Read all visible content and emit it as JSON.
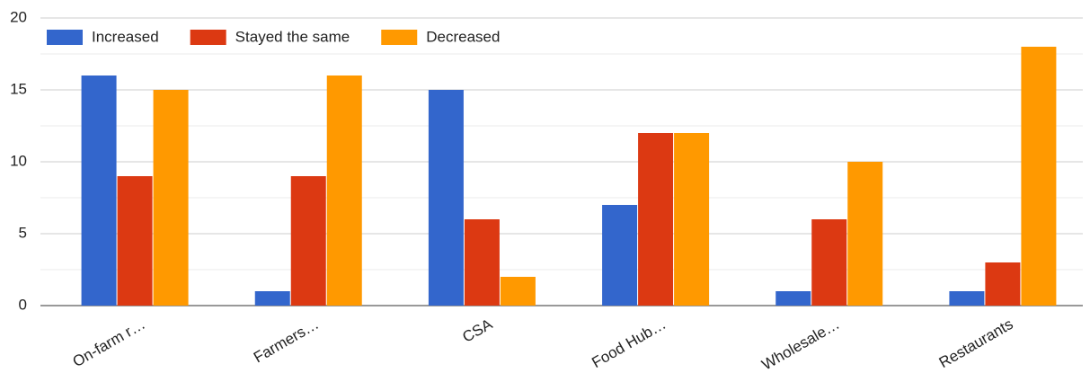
{
  "chart_data": {
    "type": "bar",
    "categories": [
      "On-farm r…",
      "Farmers…",
      "CSA",
      "Food Hub…",
      "Wholesale…",
      "Restaurants"
    ],
    "series": [
      {
        "name": "Increased",
        "color": "#3366cc",
        "values": [
          16,
          1,
          15,
          7,
          1,
          1
        ]
      },
      {
        "name": "Stayed the same",
        "color": "#dc3912",
        "values": [
          9,
          9,
          6,
          12,
          6,
          3
        ]
      },
      {
        "name": "Decreased",
        "color": "#ff9900",
        "values": [
          15,
          16,
          2,
          12,
          10,
          18
        ]
      }
    ],
    "ylim": [
      0,
      20
    ],
    "yticks": [
      0,
      5,
      10,
      15,
      20
    ],
    "minor_yticks": [
      2.5,
      7.5,
      12.5,
      17.5
    ],
    "grid": true,
    "legend": "top-left"
  }
}
